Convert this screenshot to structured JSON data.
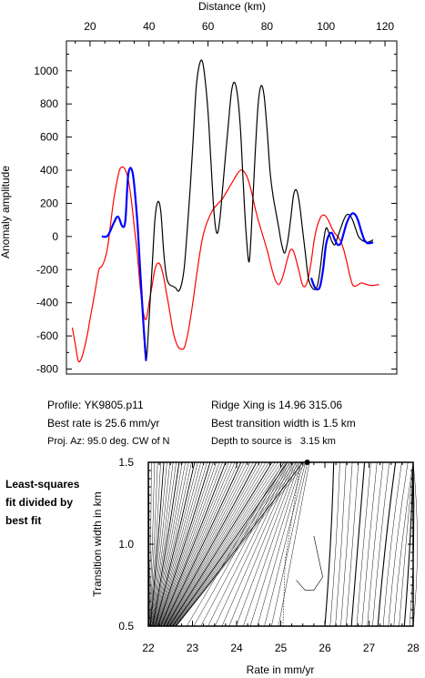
{
  "chart_data": [
    {
      "type": "line",
      "xlabel": "Distance (km)",
      "ylabel": "Anomaly amplitude",
      "xlim": [
        12,
        124
      ],
      "ylim": [
        -830,
        1180
      ],
      "xticks": [
        20,
        40,
        60,
        80,
        100,
        120
      ],
      "yticks": [
        -800,
        -600,
        -400,
        -200,
        0,
        200,
        400,
        600,
        800,
        1000
      ],
      "x_axis_position": "top",
      "series": [
        {
          "color": "#000000",
          "x": [
            24,
            26,
            28,
            29.5,
            31,
            32,
            33,
            34.5,
            36,
            37,
            38,
            39,
            40,
            41,
            42,
            43,
            44,
            45,
            46,
            47,
            48,
            49,
            50,
            51,
            52,
            53,
            54,
            55,
            56,
            57,
            58,
            59,
            60,
            61,
            62,
            63,
            64,
            65,
            66,
            67,
            68,
            69,
            70,
            71,
            72,
            73,
            74,
            75,
            76,
            77,
            78,
            79,
            80,
            81,
            82,
            83,
            84,
            85,
            86,
            87,
            88,
            89,
            90,
            91,
            92,
            93,
            94,
            95,
            96,
            97,
            98,
            99,
            100,
            101,
            102,
            103,
            104,
            105,
            106,
            107,
            108,
            109,
            110,
            111,
            112,
            113,
            114,
            115,
            116
          ],
          "y": [
            0,
            5,
            80,
            120,
            60,
            100,
            380,
            380,
            100,
            -200,
            -500,
            -750,
            -500,
            -200,
            100,
            210,
            150,
            -100,
            -250,
            -290,
            -300,
            -310,
            -330,
            -290,
            -180,
            50,
            300,
            600,
            900,
            1030,
            1060,
            950,
            750,
            450,
            150,
            20,
            100,
            300,
            500,
            700,
            880,
            930,
            850,
            650,
            300,
            0,
            -150,
            150,
            500,
            800,
            910,
            850,
            650,
            400,
            250,
            150,
            50,
            -50,
            -100,
            -30,
            100,
            250,
            280,
            200,
            50,
            -100,
            -250,
            -300,
            -320,
            -300,
            -200,
            -50,
            50,
            20,
            -30,
            -50,
            0,
            50,
            100,
            130,
            130,
            100,
            50,
            0,
            -20,
            -30,
            -35,
            -30,
            -20
          ]
        },
        {
          "color": "#0000ff",
          "x": [
            24,
            26,
            28,
            29.5,
            31,
            32,
            33,
            34.5,
            36,
            37,
            38,
            39,
            95,
            96,
            97,
            98,
            99,
            100,
            101,
            102,
            103,
            104,
            105,
            106,
            107,
            108,
            109,
            110,
            111,
            112,
            113,
            114,
            115,
            116
          ],
          "y": [
            0,
            5,
            80,
            120,
            60,
            100,
            380,
            380,
            100,
            -200,
            -500,
            -750,
            -250,
            -300,
            -320,
            -300,
            -200,
            -50,
            10,
            20,
            -20,
            -50,
            -40,
            20,
            80,
            120,
            140,
            130,
            90,
            30,
            -20,
            -40,
            -40,
            -35
          ]
        },
        {
          "color": "#ff0000",
          "x": [
            14,
            15,
            16,
            17,
            18,
            19,
            20,
            21,
            22,
            23,
            24,
            25,
            26,
            27,
            28,
            29,
            30,
            31,
            32,
            33,
            34,
            35,
            36,
            37,
            38,
            39,
            40,
            41,
            42,
            43,
            44,
            45,
            46,
            47,
            48,
            49,
            50,
            51,
            52,
            53,
            54,
            55,
            56,
            57,
            58,
            59,
            60,
            61,
            62,
            63,
            64,
            65,
            66,
            67,
            68,
            69,
            70,
            71,
            72,
            73,
            74,
            75,
            76,
            77,
            78,
            79,
            80,
            81,
            82,
            83,
            84,
            85,
            86,
            87,
            88,
            89,
            90,
            91,
            92,
            93,
            94,
            95,
            96,
            97,
            98,
            99,
            100,
            101,
            102,
            103,
            104,
            105,
            106,
            107,
            108,
            109,
            110,
            111,
            112,
            113,
            114,
            115,
            116,
            117,
            118
          ],
          "y": [
            -550,
            -650,
            -750,
            -740,
            -680,
            -600,
            -500,
            -400,
            -300,
            -200,
            -180,
            -140,
            -60,
            80,
            220,
            320,
            400,
            420,
            400,
            340,
            220,
            60,
            -100,
            -300,
            -450,
            -500,
            -400,
            -300,
            -200,
            -160,
            -180,
            -250,
            -350,
            -450,
            -560,
            -630,
            -670,
            -680,
            -670,
            -600,
            -500,
            -380,
            -250,
            -130,
            -20,
            50,
            100,
            140,
            170,
            190,
            210,
            230,
            260,
            290,
            320,
            350,
            380,
            400,
            395,
            370,
            320,
            250,
            170,
            100,
            40,
            -20,
            -80,
            -150,
            -220,
            -270,
            -290,
            -260,
            -200,
            -130,
            -80,
            -90,
            -150,
            -220,
            -290,
            -300,
            -250,
            -150,
            -20,
            60,
            110,
            130,
            120,
            90,
            50,
            20,
            0,
            -30,
            -80,
            -150,
            -230,
            -290,
            -300,
            -290,
            -280,
            -285,
            -290,
            -295,
            -295,
            -293,
            -290
          ]
        }
      ]
    },
    {
      "type": "contour",
      "xlabel": "Rate in mm/yr",
      "ylabel": "Transition width in km",
      "xlim": [
        22,
        28
      ],
      "ylim": [
        0.5,
        1.5
      ],
      "xticks": [
        22,
        23,
        24,
        25,
        26,
        27,
        28
      ],
      "yticks": [
        0.5,
        1.0,
        1.5
      ],
      "best_fit": {
        "x": 25.6,
        "y": 1.5
      }
    }
  ],
  "info": {
    "profile": "Profile: YK9805.p11",
    "best_rate": "Best rate is 25.6 mm/yr",
    "proj_az": "Proj. Az: 95.0 deg. CW of N",
    "ridge_xing": "Ridge Xing is 14.96 315.06",
    "best_width": "Best transition width is 1.5 km",
    "depth": "Depth to source is   3.15 km"
  },
  "side_label": [
    "Least-squares",
    "fit divided by",
    "best fit"
  ]
}
